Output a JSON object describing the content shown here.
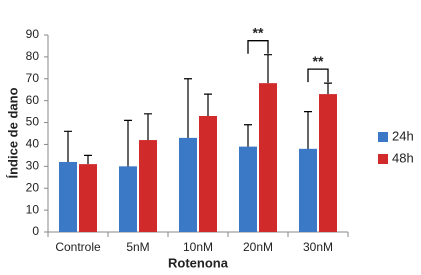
{
  "chart_data": {
    "type": "bar",
    "x_label": "Rotenona",
    "y_label": "Índice de dano",
    "categories": [
      "Controle",
      "5nM",
      "10nM",
      "20nM",
      "30nM"
    ],
    "series": [
      {
        "name": "24h",
        "color": "#3b78c6",
        "values": [
          32,
          30,
          43,
          39,
          38
        ],
        "errors": [
          14,
          21,
          27,
          10,
          17
        ]
      },
      {
        "name": "48h",
        "color": "#d02a2a",
        "values": [
          31,
          42,
          53,
          68,
          63
        ],
        "errors": [
          4,
          12,
          10,
          13,
          5
        ]
      }
    ],
    "annotations": [
      {
        "category": "20nM",
        "text": "**"
      },
      {
        "category": "30nM",
        "text": "**"
      }
    ],
    "ylim": [
      0,
      90
    ],
    "yticks": [
      0,
      10,
      20,
      30,
      40,
      50,
      60,
      70,
      80,
      90
    ],
    "grid": false,
    "legend": "right"
  }
}
